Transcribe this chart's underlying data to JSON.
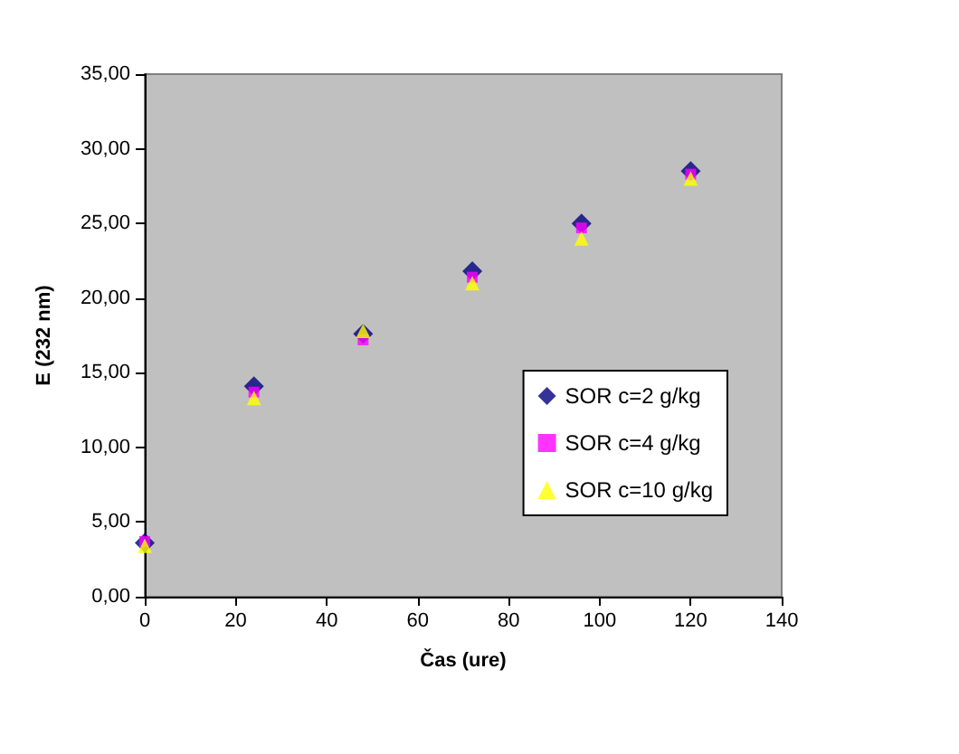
{
  "chart_data": {
    "type": "scatter",
    "xlabel": "Čas (ure)",
    "ylabel": "E (232 nm)",
    "x": [
      0,
      24,
      48,
      72,
      96,
      120
    ],
    "xlim": [
      0,
      140
    ],
    "xticks": [
      0,
      20,
      40,
      60,
      80,
      100,
      120,
      140
    ],
    "ylim": [
      0,
      35
    ],
    "yticks": [
      {
        "value": 0,
        "label": "0,00"
      },
      {
        "value": 5,
        "label": "5,00"
      },
      {
        "value": 10,
        "label": "10,00"
      },
      {
        "value": 15,
        "label": "15,00"
      },
      {
        "value": 20,
        "label": "20,00"
      },
      {
        "value": 25,
        "label": "25,00"
      },
      {
        "value": 30,
        "label": "30,00"
      },
      {
        "value": 35,
        "label": "35,00"
      }
    ],
    "grid": false,
    "legend": "right",
    "series": [
      {
        "name": "SOR c=2 g/kg",
        "color": "#000080",
        "marker": "diamond",
        "values": [
          3.6,
          14.1,
          17.6,
          21.8,
          25.0,
          28.5
        ]
      },
      {
        "name": "SOR c=4 g/kg",
        "color": "#ff00ff",
        "marker": "square",
        "values": [
          3.7,
          13.7,
          17.2,
          21.4,
          24.7,
          28.3
        ]
      },
      {
        "name": "SOR c=10 g/kg",
        "color": "#ffff00",
        "marker": "triangle",
        "values": [
          3.4,
          13.3,
          17.8,
          21.0,
          24.0,
          28.0
        ]
      }
    ]
  }
}
